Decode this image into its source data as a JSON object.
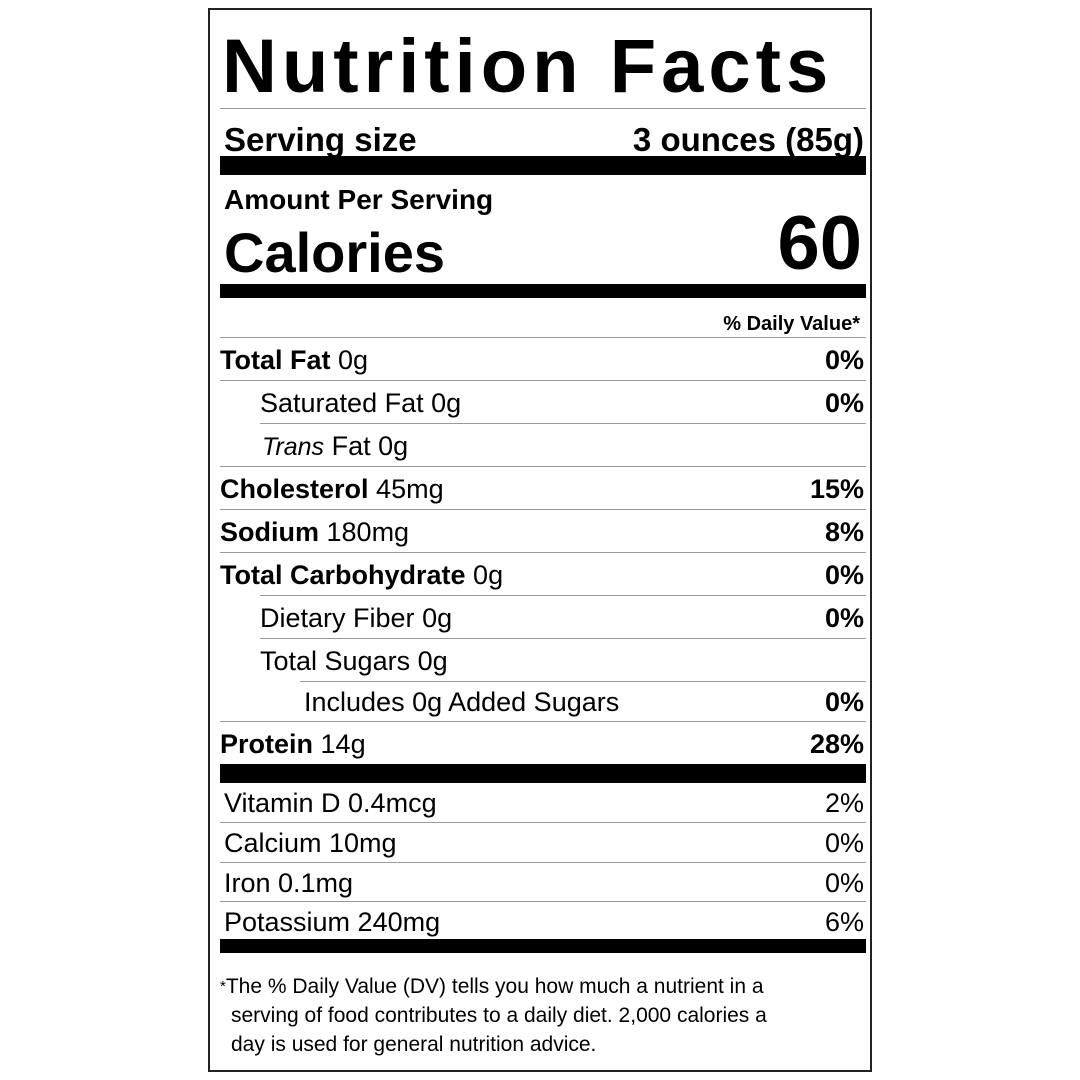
{
  "title": "Nutrition Facts",
  "serving": {
    "label": "Serving size",
    "value": "3 ounces (85g)"
  },
  "calories": {
    "amount_label": "Amount Per Serving",
    "label": "Calories",
    "value": "60"
  },
  "dv_header": "% Daily Value*",
  "nutrients": [
    {
      "name": "Total Fat",
      "amount": "0g",
      "dv": "0%"
    },
    {
      "name": "Saturated Fat",
      "amount": "0g",
      "dv": "0%"
    },
    {
      "name": "Trans",
      "suffix": "Fat 0g",
      "dv": ""
    },
    {
      "name": "Cholesterol",
      "amount": "45mg",
      "dv": "15%"
    },
    {
      "name": "Sodium",
      "amount": "180mg",
      "dv": "8%"
    },
    {
      "name": "Total Carbohydrate",
      "amount": "0g",
      "dv": "0%"
    },
    {
      "name": "Dietary Fiber",
      "amount": "0g",
      "dv": "0%"
    },
    {
      "name": "Total Sugars",
      "amount": "0g",
      "dv": ""
    },
    {
      "name": "Includes 0g Added Sugars",
      "dv": "0%"
    },
    {
      "name": "Protein",
      "amount": "14g",
      "dv": "28%"
    }
  ],
  "vitamins": [
    {
      "text": "Vitamin D 0.4mcg",
      "dv": "2%"
    },
    {
      "text": "Calcium 10mg",
      "dv": "0%"
    },
    {
      "text": "Iron 0.1mg",
      "dv": "0%"
    },
    {
      "text": "Potassium 240mg",
      "dv": "6%"
    }
  ],
  "footnote": {
    "star": "*",
    "lines": [
      "The % Daily Value (DV) tells you how much a nutrient in a",
      "serving of food contributes to a daily diet. 2,000 calories a",
      "day is used for general nutrition advice."
    ]
  }
}
